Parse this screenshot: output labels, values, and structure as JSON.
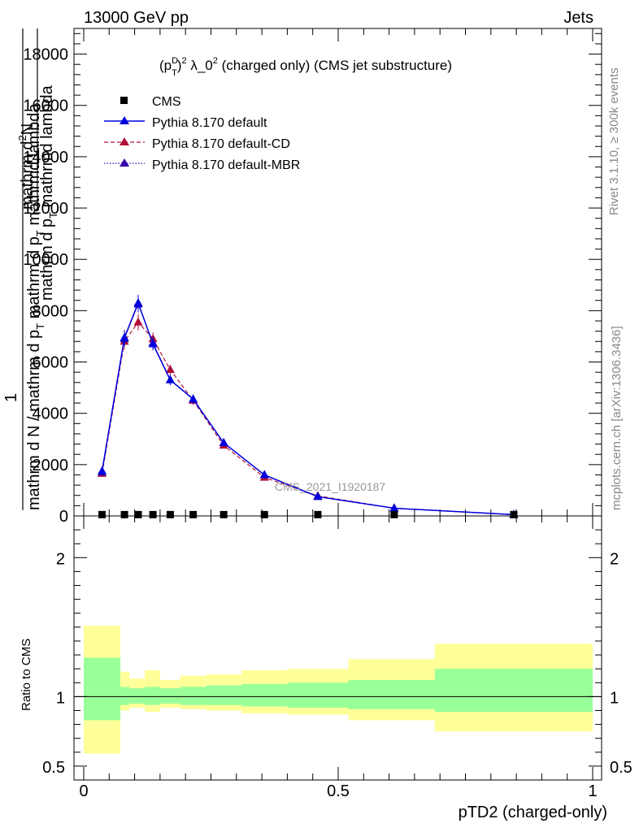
{
  "header": {
    "left": "13000 GeV pp",
    "right": "Jets"
  },
  "side_labels": {
    "rivet": "Rivet 3.1.10, ≥ 300k events",
    "mcplots": "mcplots.cern.ch [arXiv:1306.3436]"
  },
  "watermark": "CMS_2021_I1920187",
  "chart_data": [
    {
      "type": "line",
      "title": "(p_T^D)^2 λ_0^2 (charged only) (CMS jet substructure)",
      "title_parts": {
        "a": "(p",
        "sup1": "D",
        "sub1": "T",
        "b": ")",
        "sup2": "2",
        "c": " λ_0",
        "sup3": "2",
        "d": " (charged only) (CMS jet substructure)"
      },
      "ylabel_lines": [
        "1",
        "mathrm d N / mathrm d p_T mathrm d p_T mathrmd lambda",
        "mathrm d²N",
        "mathrm d p_T mathrmd lambda"
      ],
      "ylabel_parts": {
        "num": "mathrm d",
        "num_sup": "2",
        "num_tail": "N",
        "den": "mathrm d p",
        "den_sub": "T",
        "den_tail": " mathrmd lambda",
        "one": "1",
        "bottom": "mathrm d N / mathrm d p",
        "bottom_sub": "T",
        "bottom_tail": " mathrm d p",
        "bottom_sub2": "T",
        "bottom_tail2": " mathrmd lambda"
      },
      "xlim": [
        0,
        1
      ],
      "ylim": [
        0,
        19000
      ],
      "y_ticks": [
        0,
        2000,
        4000,
        6000,
        8000,
        10000,
        12000,
        14000,
        16000,
        18000
      ],
      "y_tick_labels": [
        "0",
        "2000",
        "4000",
        "6000",
        "8000",
        "10000",
        "12000",
        "14000",
        "16000",
        "18000"
      ],
      "x": [
        0.036,
        0.08,
        0.107,
        0.136,
        0.17,
        0.215,
        0.275,
        0.355,
        0.46,
        0.61,
        0.845
      ],
      "series": [
        {
          "name": "CMS",
          "color": "#000000",
          "values": [
            20,
            20,
            20,
            20,
            20,
            20,
            20,
            20,
            20,
            20,
            20
          ]
        },
        {
          "name": "Pythia 8.170 default",
          "color": "#0000dd",
          "values": [
            1750,
            6950,
            8300,
            6700,
            5300,
            4550,
            2850,
            1600,
            750,
            300,
            50
          ],
          "err": [
            120,
            300,
            320,
            250,
            200,
            180,
            120,
            90,
            60,
            40,
            20
          ]
        },
        {
          "name": "Pythia 8.170 default-CD",
          "color": "#b0103a",
          "values": [
            1650,
            6800,
            7550,
            6900,
            5700,
            4500,
            2750,
            1500,
            780,
            300,
            50
          ],
          "err": [
            120,
            300,
            320,
            250,
            200,
            180,
            120,
            90,
            60,
            40,
            20
          ]
        },
        {
          "name": "Pythia 8.170 default-MBR",
          "color": "#3300aa",
          "values": [
            1700,
            6900,
            8250,
            6750,
            5300,
            4550,
            2850,
            1600,
            760,
            300,
            50
          ],
          "err": [
            120,
            300,
            320,
            250,
            200,
            180,
            120,
            90,
            60,
            40,
            20
          ]
        }
      ]
    },
    {
      "type": "area",
      "ylabel": "Ratio to CMS",
      "xlabel": "pTD2 (charged-only)",
      "xlim": [
        0,
        1
      ],
      "ylim": [
        0.4,
        2.3
      ],
      "y_ticks": [
        0.5,
        1,
        2
      ],
      "y_tick_labels": [
        "0.5",
        "1",
        "2"
      ],
      "x_ticks": [
        0,
        0.5,
        1
      ],
      "x_tick_labels": [
        "0",
        "0.5",
        "1"
      ],
      "bin_edges": [
        0,
        0.072,
        0.09,
        0.12,
        0.15,
        0.19,
        0.24,
        0.31,
        0.4,
        0.52,
        0.69,
        1.0
      ],
      "inner_band": {
        "color": "#99ff99",
        "lo": [
          0.83,
          0.94,
          0.95,
          0.94,
          0.95,
          0.94,
          0.94,
          0.93,
          0.92,
          0.91,
          0.89
        ],
        "hi": [
          1.28,
          1.07,
          1.06,
          1.07,
          1.06,
          1.07,
          1.08,
          1.09,
          1.1,
          1.12,
          1.2
        ]
      },
      "outer_band": {
        "color": "#ffff99",
        "lo": [
          0.59,
          0.9,
          0.92,
          0.89,
          0.92,
          0.91,
          0.9,
          0.88,
          0.87,
          0.83,
          0.75
        ],
        "hi": [
          1.51,
          1.18,
          1.13,
          1.19,
          1.12,
          1.15,
          1.16,
          1.19,
          1.2,
          1.27,
          1.38
        ]
      },
      "reference_line": 1
    }
  ]
}
